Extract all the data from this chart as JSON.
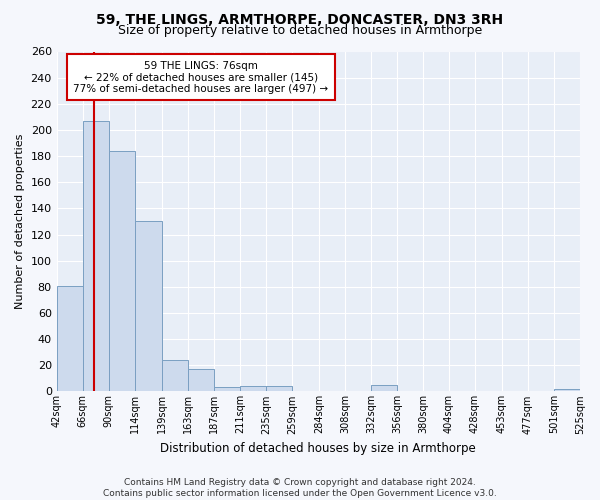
{
  "title1": "59, THE LINGS, ARMTHORPE, DONCASTER, DN3 3RH",
  "title2": "Size of property relative to detached houses in Armthorpe",
  "xlabel": "Distribution of detached houses by size in Armthorpe",
  "ylabel": "Number of detached properties",
  "bar_color": "#cddaed",
  "bar_edge_color": "#7a9fc2",
  "bg_color": "#e8eef7",
  "grid_color": "#ffffff",
  "fig_bg_color": "#f5f7fc",
  "bins": [
    42,
    66,
    90,
    114,
    139,
    163,
    187,
    211,
    235,
    259,
    284,
    308,
    332,
    356,
    380,
    404,
    428,
    453,
    477,
    501,
    525
  ],
  "heights": [
    81,
    207,
    184,
    130,
    24,
    17,
    3,
    4,
    4,
    0,
    0,
    0,
    5,
    0,
    0,
    0,
    0,
    0,
    0,
    2
  ],
  "property_size": 76,
  "vline_color": "#cc0000",
  "annotation_text": "59 THE LINGS: 76sqm\n← 22% of detached houses are smaller (145)\n77% of semi-detached houses are larger (497) →",
  "annotation_box_color": "#ffffff",
  "annotation_box_edge": "#cc0000",
  "footer_text": "Contains HM Land Registry data © Crown copyright and database right 2024.\nContains public sector information licensed under the Open Government Licence v3.0.",
  "ylim": [
    0,
    260
  ],
  "yticks": [
    0,
    20,
    40,
    60,
    80,
    100,
    120,
    140,
    160,
    180,
    200,
    220,
    240,
    260
  ]
}
